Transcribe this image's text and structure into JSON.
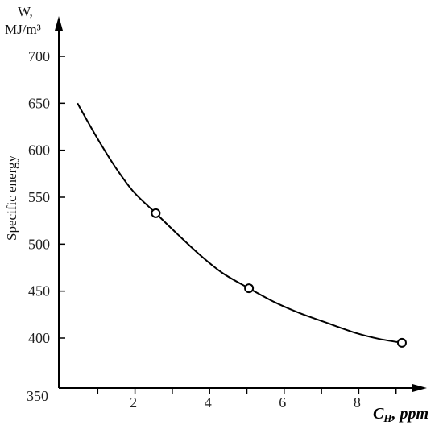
{
  "chart_data": {
    "type": "line",
    "ylabel_symbol": "W,",
    "ylabel_unit": "MJ/m³",
    "ylabel_rotated": "Specific energy",
    "xlabel_symbol": "C",
    "xlabel_subscript": "H",
    "xlabel_unit": ", ppm",
    "xlim": [
      0,
      9.5
    ],
    "ylim": [
      350,
      750
    ],
    "x_ticks": [
      2,
      4,
      6,
      8
    ],
    "x_minor_ticks": [
      1,
      3,
      5,
      7,
      9
    ],
    "y_ticks": [
      350,
      400,
      450,
      500,
      550,
      600,
      650,
      700
    ],
    "series": [
      {
        "curve_x": [
          0.5,
          1.0,
          1.5,
          2.0,
          2.6,
          3.2,
          3.8,
          4.4,
          5.1,
          5.8,
          6.5,
          7.2,
          8.0,
          8.6,
          9.2
        ],
        "curve_y": [
          650,
          615,
          583,
          556,
          533,
          510,
          488,
          469,
          453,
          438,
          426,
          416,
          405,
          399,
          395
        ],
        "marker_x": [
          2.6,
          5.1,
          9.2
        ],
        "marker_y": [
          533,
          453,
          395
        ]
      }
    ],
    "grid": false,
    "colors": {
      "line": "#000000",
      "axis": "#000000",
      "marker_fill": "#ffffff"
    }
  }
}
